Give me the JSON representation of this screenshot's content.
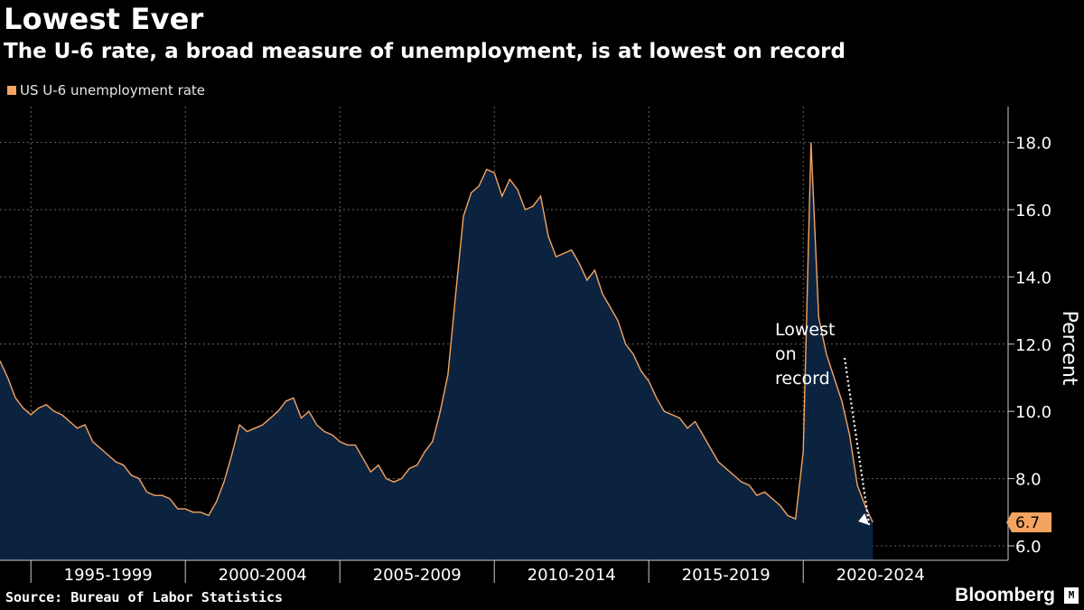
{
  "chart_data": {
    "type": "area",
    "title": "Lowest Ever",
    "subtitle": "The U-6 rate, a broad measure of unemployment, is at lowest on record",
    "ylabel": "Percent",
    "ylim": [
      5.6,
      19.1
    ],
    "yticks": [
      "6.0",
      "8.0",
      "10.0",
      "12.0",
      "14.0",
      "16.0",
      "18.0"
    ],
    "categories": [
      "1995-1999",
      "2000-2004",
      "2005-2009",
      "2010-2014",
      "2015-2019",
      "2020-2024"
    ],
    "grid": true,
    "legend_position": "top-left",
    "series": [
      {
        "name": "US U-6 unemployment rate",
        "color": "#f4a460",
        "fill": "#0c2340",
        "x": [
          1994.0,
          1994.25,
          1994.5,
          1994.75,
          1995.0,
          1995.25,
          1995.5,
          1995.75,
          1996.0,
          1996.25,
          1996.5,
          1996.75,
          1997.0,
          1997.25,
          1997.5,
          1997.75,
          1998.0,
          1998.25,
          1998.5,
          1998.75,
          1999.0,
          1999.25,
          1999.5,
          1999.75,
          2000.0,
          2000.25,
          2000.5,
          2000.75,
          2001.0,
          2001.25,
          2001.5,
          2001.75,
          2002.0,
          2002.25,
          2002.5,
          2002.75,
          2003.0,
          2003.25,
          2003.5,
          2003.75,
          2004.0,
          2004.25,
          2004.5,
          2004.75,
          2005.0,
          2005.25,
          2005.5,
          2005.75,
          2006.0,
          2006.25,
          2006.5,
          2006.75,
          2007.0,
          2007.25,
          2007.5,
          2007.75,
          2008.0,
          2008.25,
          2008.5,
          2008.75,
          2009.0,
          2009.25,
          2009.5,
          2009.75,
          2010.0,
          2010.25,
          2010.5,
          2010.75,
          2011.0,
          2011.25,
          2011.5,
          2011.75,
          2012.0,
          2012.25,
          2012.5,
          2012.75,
          2013.0,
          2013.25,
          2013.5,
          2013.75,
          2014.0,
          2014.25,
          2014.5,
          2014.75,
          2015.0,
          2015.25,
          2015.5,
          2015.75,
          2016.0,
          2016.25,
          2016.5,
          2016.75,
          2017.0,
          2017.25,
          2017.5,
          2017.75,
          2018.0,
          2018.25,
          2018.5,
          2018.75,
          2019.0,
          2019.25,
          2019.5,
          2019.75,
          2020.0,
          2020.25,
          2020.5,
          2020.75,
          2021.0,
          2021.25,
          2021.5,
          2021.75,
          2022.0,
          2022.25
        ],
        "values": [
          11.5,
          11.0,
          10.4,
          10.1,
          9.9,
          10.1,
          10.2,
          10.0,
          9.9,
          9.7,
          9.5,
          9.6,
          9.1,
          8.9,
          8.7,
          8.5,
          8.4,
          8.1,
          8.0,
          7.6,
          7.5,
          7.5,
          7.4,
          7.1,
          7.1,
          7.0,
          7.0,
          6.9,
          7.3,
          7.9,
          8.7,
          9.6,
          9.4,
          9.5,
          9.6,
          9.8,
          10.0,
          10.3,
          10.4,
          9.8,
          10.0,
          9.6,
          9.4,
          9.3,
          9.1,
          9.0,
          9.0,
          8.6,
          8.2,
          8.4,
          8.0,
          7.9,
          8.0,
          8.3,
          8.4,
          8.8,
          9.1,
          10.0,
          11.1,
          13.5,
          15.8,
          16.5,
          16.7,
          17.2,
          17.1,
          16.4,
          16.9,
          16.6,
          16.0,
          16.1,
          16.4,
          15.2,
          14.6,
          14.7,
          14.8,
          14.4,
          13.9,
          14.2,
          13.5,
          13.1,
          12.7,
          12.0,
          11.7,
          11.2,
          10.9,
          10.4,
          10.0,
          9.9,
          9.8,
          9.5,
          9.7,
          9.3,
          8.9,
          8.5,
          8.3,
          8.1,
          7.9,
          7.8,
          7.5,
          7.6,
          7.4,
          7.2,
          6.9,
          6.8,
          8.8,
          18.0,
          12.8,
          11.7,
          11.0,
          10.3,
          9.3,
          7.8,
          7.2,
          6.7
        ]
      }
    ],
    "last_value": "6.7",
    "annotations": [
      {
        "lines": [
          "Lowest",
          "on",
          "record"
        ]
      }
    ]
  },
  "source": "Source: Bureau of Labor Statistics",
  "brand": "Bloomberg",
  "brand_mark": "M"
}
